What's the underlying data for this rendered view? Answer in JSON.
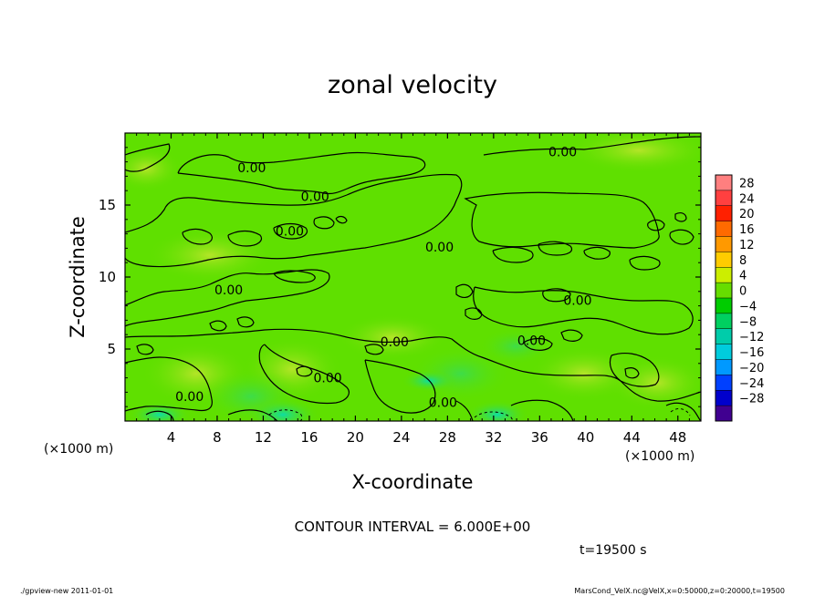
{
  "chart_data": {
    "type": "heatmap",
    "title": "zonal velocity",
    "xlabel": "X-coordinate",
    "ylabel": "Z-coordinate",
    "x_unit": "(×1000 m)",
    "y_unit": "(×1000 m)",
    "xlim": [
      0,
      50
    ],
    "ylim": [
      0,
      20
    ],
    "x_ticks": [
      4,
      8,
      12,
      16,
      20,
      24,
      28,
      32,
      36,
      40,
      44,
      48
    ],
    "y_ticks": [
      5,
      10,
      15
    ],
    "colorbar": {
      "levels": [
        28,
        24,
        20,
        16,
        12,
        8,
        4,
        0,
        -4,
        -8,
        -12,
        -16,
        -20,
        -24,
        -28
      ],
      "labels": [
        "28",
        "24",
        "20",
        "16",
        "12",
        "8",
        "4",
        "0",
        "−4",
        "−8",
        "−12",
        "−16",
        "−20",
        "−24",
        "−28"
      ],
      "colors": [
        "#ff7f7f",
        "#ff4040",
        "#ff2000",
        "#ff6a00",
        "#ff9900",
        "#ffcc00",
        "#ccee00",
        "#66dd00",
        "#00cc00",
        "#00d060",
        "#00ccaa",
        "#00ccdd",
        "#0099ff",
        "#0040ff",
        "#0000cc",
        "#400090"
      ]
    },
    "contour_labels": [
      {
        "text": "0.00",
        "x": 11,
        "z": 17.6
      },
      {
        "text": "0.00",
        "x": 38,
        "z": 18.7
      },
      {
        "text": "0.00",
        "x": 16.5,
        "z": 15.6
      },
      {
        "text": "0.00",
        "x": 14.3,
        "z": 13.2
      },
      {
        "text": "0.00",
        "x": 27.3,
        "z": 12.1
      },
      {
        "text": "0.00",
        "x": 9,
        "z": 9.1
      },
      {
        "text": "0.00",
        "x": 39.3,
        "z": 8.4
      },
      {
        "text": "0.00",
        "x": 23.4,
        "z": 5.5
      },
      {
        "text": "0.00",
        "x": 35.3,
        "z": 5.6
      },
      {
        "text": "0.00",
        "x": 17.6,
        "z": 3.0
      },
      {
        "text": "0.00",
        "x": 5.6,
        "z": 1.7
      },
      {
        "text": "0.00",
        "x": 27.6,
        "z": 1.3
      }
    ],
    "contour_interval": "CONTOUR INTERVAL = 6.000E+00",
    "time_label": "t=19500 s"
  },
  "footer": {
    "left": "./gpview-new  2011-01-01",
    "right": "MarsCond_VelX.nc@VelX,x=0:50000,z=0:20000,t=19500"
  },
  "colors": {
    "field_base": "#5fe000",
    "field_high": "#b5e62c",
    "field_low": "#1fd77a"
  }
}
